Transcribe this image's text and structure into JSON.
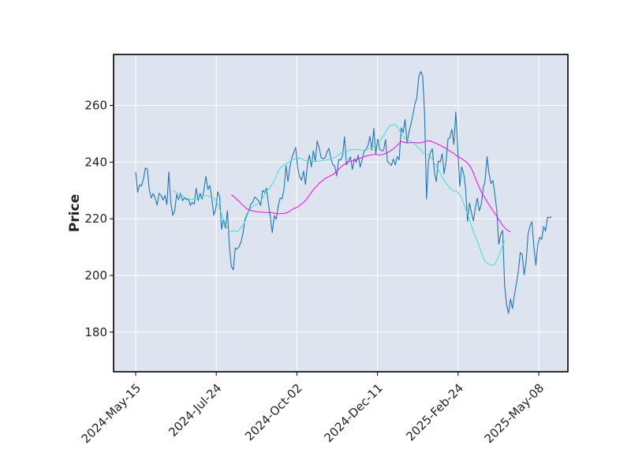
{
  "chart_data": {
    "type": "line",
    "ylabel": "Price",
    "ylim": [
      166,
      278
    ],
    "yticks": [
      180,
      200,
      220,
      240,
      260
    ],
    "x_tick_labels": [
      "2024-May-15",
      "2024-Jul-24",
      "2024-Oct-02",
      "2024-Dec-11",
      "2025-Feb-24",
      "2025-May-08"
    ],
    "grid": true,
    "legend": "none",
    "colors": {
      "background": "#dde3ef",
      "grid": "#ffffff",
      "price": "#1f77b4",
      "ma_short": "#40e0d0",
      "ma_long": "#ff00ff"
    },
    "series": [
      {
        "key": "price",
        "values": [
          236.5,
          229.3,
          232.0,
          231.6,
          234.1,
          238.0,
          237.4,
          230.2,
          227.4,
          228.9,
          227.2,
          224.8,
          229.0,
          228.3,
          226.6,
          228.2,
          225.0,
          236.5,
          225.7,
          221.2,
          222.9,
          228.6,
          226.7,
          229.0,
          226.4,
          227.4,
          226.7,
          227.1,
          224.7,
          225.8,
          225.2,
          230.8,
          226.4,
          229.0,
          226.9,
          230.2,
          235.0,
          230.4,
          231.7,
          227.3,
          221.3,
          223.3,
          229.5,
          227.9,
          216.3,
          219.8,
          216.7,
          222.9,
          210.5,
          203.2,
          202.0,
          209.7,
          209.3,
          210.2,
          211.9,
          215.0,
          219.8,
          221.5,
          222.9,
          225.2,
          225.9,
          227.7,
          227.0,
          226.3,
          224.7,
          230.0,
          229.3,
          230.8,
          225.3,
          220.6,
          215.1,
          221.1,
          219.8,
          224.4,
          227.3,
          227.0,
          230.5,
          238.8,
          233.2,
          238.2,
          241.5,
          243.4,
          245.2,
          237.9,
          234.9,
          233.6,
          236.8,
          232.1,
          239.3,
          242.5,
          238.3,
          244.0,
          240.4,
          247.5,
          245.1,
          241.6,
          241.2,
          241.5,
          243.5,
          244.9,
          241.3,
          239.1,
          238.5,
          235.1,
          240.9,
          240.7,
          242.3,
          248.9,
          239.0,
          240.4,
          241.9,
          237.4,
          241.2,
          239.9,
          242.5,
          238.2,
          240.8,
          243.8,
          244.6,
          245.8,
          249.1,
          244.2,
          251.9,
          242.9,
          248.1,
          244.5,
          244.0,
          244.1,
          248.0,
          240.2,
          239.6,
          238.8,
          241.1,
          239.0,
          242.0,
          240.8,
          252.1,
          250.4,
          255.0,
          246.9,
          250.5,
          253.5,
          256.6,
          260.4,
          262.5,
          270.0,
          272.0,
          270.5,
          257.2,
          227.0,
          240.4,
          243.5,
          244.7,
          236.5,
          233.1,
          240.4,
          240.0,
          243.0,
          235.9,
          240.2,
          248.1,
          248.7,
          251.6,
          246.2,
          257.7,
          244.8,
          231.4,
          238.4,
          236.0,
          230.9,
          219.1,
          225.6,
          222.2,
          219.3,
          223.9,
          227.3,
          222.8,
          224.9,
          230.6,
          233.4,
          241.9,
          236.1,
          232.4,
          233.5,
          228.6,
          222.8,
          211.0,
          214.5,
          215.9,
          196.4,
          189.6,
          186.6,
          191.7,
          188.3,
          192.9,
          197.0,
          201.3,
          208.1,
          207.4,
          200.2,
          204.8,
          214.5,
          217.5,
          218.9,
          210.0,
          203.6,
          210.8,
          213.5,
          212.7,
          217.3,
          215.7,
          220.6,
          220.3,
          220.8
        ]
      },
      {
        "key": "ma_short",
        "values": [
          null,
          null,
          null,
          null,
          null,
          null,
          null,
          null,
          null,
          null,
          null,
          null,
          null,
          null,
          null,
          null,
          null,
          null,
          null,
          230.0,
          229.6,
          229.2,
          228.8,
          228.4,
          228.0,
          227.6,
          227.3,
          227.0,
          226.9,
          226.9,
          226.9,
          227.0,
          227.3,
          227.6,
          227.9,
          228.1,
          228.2,
          228.1,
          227.8,
          227.3,
          227.3,
          226.6,
          225.2,
          223.5,
          221.8,
          219.8,
          218.0,
          216.5,
          215.6,
          215.6,
          215.8,
          215.6,
          215.4,
          216.1,
          217.0,
          217.8,
          219.0,
          220.9,
          222.7,
          223.8,
          224.4,
          224.7,
          225.1,
          225.6,
          226.3,
          227.3,
          228.5,
          229.5,
          230.4,
          231.2,
          232.2,
          233.5,
          235.0,
          236.7,
          237.8,
          238.5,
          239.0,
          239.4,
          239.8,
          240.3,
          240.8,
          241.0,
          241.1,
          241.3,
          241.4,
          241.2,
          240.7,
          240.5,
          240.4,
          240.2,
          240.2,
          240.2,
          240.2,
          240.2,
          240.3,
          240.5,
          240.6,
          240.7,
          240.8,
          240.9,
          241.1,
          241.4,
          241.7,
          242.1,
          242.6,
          243.1,
          243.4,
          243.6,
          243.8,
          244.0,
          244.3,
          244.3,
          244.4,
          244.4,
          244.5,
          244.3,
          244.2,
          244.2,
          244.3,
          244.5,
          244.9,
          245.2,
          245.6,
          246.1,
          246.7,
          247.5,
          248.4,
          249.4,
          250.5,
          251.7,
          252.7,
          253.1,
          253.2,
          253.0,
          252.7,
          251.3,
          250.1,
          249.2,
          248.4,
          247.9,
          247.5,
          247.2,
          246.8,
          246.3,
          245.7,
          245.1,
          244.4,
          243.6,
          242.8,
          242.6,
          242.5,
          242.0,
          240.9,
          239.7,
          238.5,
          237.4,
          236.1,
          234.7,
          233.5,
          232.6,
          231.7,
          230.9,
          230.2,
          229.8,
          229.8,
          229.4,
          228.5,
          227.3,
          225.5,
          223.6,
          221.7,
          219.7,
          217.7,
          215.6,
          213.8,
          212.1,
          210.3,
          208.3,
          206.4,
          204.9,
          204.3,
          204.0,
          203.6,
          203.5,
          204.1,
          205.3,
          206.8,
          208.5,
          210.6,
          212.3
        ]
      },
      {
        "key": "ma_long",
        "values": [
          null,
          null,
          null,
          null,
          null,
          null,
          null,
          null,
          null,
          null,
          null,
          null,
          null,
          null,
          null,
          null,
          null,
          null,
          null,
          null,
          null,
          null,
          null,
          null,
          null,
          null,
          null,
          null,
          null,
          null,
          null,
          null,
          null,
          null,
          null,
          null,
          null,
          null,
          null,
          null,
          null,
          null,
          null,
          null,
          null,
          null,
          null,
          null,
          null,
          228.5,
          228.0,
          227.4,
          226.7,
          226.2,
          225.4,
          224.7,
          224.1,
          223.5,
          223.1,
          222.9,
          222.8,
          222.6,
          222.5,
          222.4,
          222.4,
          222.3,
          222.2,
          222.2,
          222.2,
          222.2,
          222.1,
          222.0,
          221.8,
          221.8,
          221.8,
          221.9,
          221.9,
          222.0,
          222.3,
          222.7,
          223.2,
          223.6,
          223.9,
          224.1,
          224.7,
          225.2,
          225.8,
          226.5,
          227.3,
          228.3,
          229.3,
          230.2,
          231.0,
          231.7,
          232.5,
          233.1,
          233.6,
          234.2,
          234.6,
          234.9,
          235.3,
          235.6,
          236.1,
          236.8,
          237.5,
          238.2,
          238.8,
          239.3,
          239.8,
          240.2,
          240.3,
          240.5,
          240.7,
          240.9,
          241.1,
          241.4,
          241.6,
          241.9,
          242.1,
          242.3,
          242.5,
          242.6,
          242.7,
          242.7,
          242.6,
          242.5,
          242.6,
          242.8,
          243.1,
          243.4,
          243.7,
          244.2,
          244.7,
          245.3,
          245.9,
          246.6,
          247.3,
          247.1,
          246.9,
          246.8,
          246.8,
          246.9,
          246.9,
          246.9,
          246.8,
          246.8,
          246.8,
          247.0,
          247.2,
          247.4,
          247.5,
          247.5,
          247.1,
          246.9,
          246.6,
          246.3,
          245.9,
          245.5,
          245.2,
          244.8,
          244.3,
          243.9,
          243.4,
          243.0,
          242.5,
          242.0,
          241.6,
          241.2,
          240.7,
          240.2,
          239.6,
          238.8,
          237.7,
          236.2,
          234.3,
          232.7,
          231.0,
          229.6,
          228.3,
          227.2,
          226.1,
          225.0,
          223.9,
          222.9,
          221.9,
          220.9,
          219.7,
          218.7,
          217.6,
          216.9,
          216.2,
          215.7,
          215.4
        ]
      }
    ]
  }
}
